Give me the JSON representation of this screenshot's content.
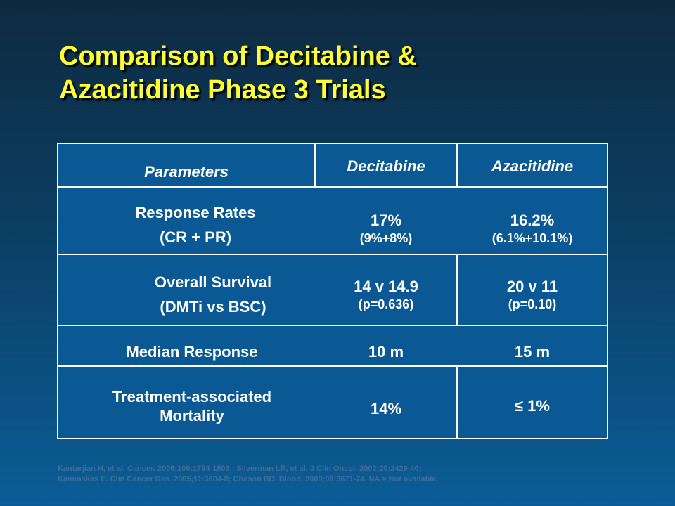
{
  "title": {
    "line1": "Comparison of Decitabine &",
    "line2": "Azacitidine Phase 3 Trials"
  },
  "table": {
    "headers": {
      "parameters": "Parameters",
      "decitabine": "Decitabine",
      "azacitidine": "Azacitidine"
    },
    "rows": [
      {
        "param_line1": "Response Rates",
        "param_line2": "(CR + PR)",
        "decitabine_main": "17%",
        "decitabine_sub": "(9%+8%)",
        "azacitidine_main": "16.2%",
        "azacitidine_sub": "(6.1%+10.1%)"
      },
      {
        "param_line1": "Overall Survival",
        "param_line2": "(DMTi vs BSC)",
        "decitabine_main": "14 v 14.9",
        "decitabine_sub": "(p=0.636)",
        "azacitidine_main": "20 v 11",
        "azacitidine_sub": "(p=0.10)"
      },
      {
        "param_line1": "Median Response",
        "decitabine_main": "10 m",
        "azacitidine_main": "15 m"
      },
      {
        "param_line1": "Treatment-associated",
        "param_line2": "Mortality",
        "decitabine_main": "14%",
        "azacitidine_main": "≤ 1%"
      }
    ]
  },
  "footer": {
    "line1": "Kantarjian H, et al. Cancer. 2006;106:1794-1803.;  Silverman LR, et al. J Clin Oncol. 2002;20:2429-40;",
    "line2": "Kaminskas E. Clin Cancer Res. 2005;11:3604-8;  Cheson BD. Blood. 2000;96:3671-74. NA = Not available."
  },
  "colors": {
    "title": "#ffff33",
    "background_top": "#0e2a40",
    "background_bottom": "#0b5d97",
    "table_fill": "#0b5994",
    "table_lines": "#ffffff",
    "footer_text": "#3e6e98"
  }
}
